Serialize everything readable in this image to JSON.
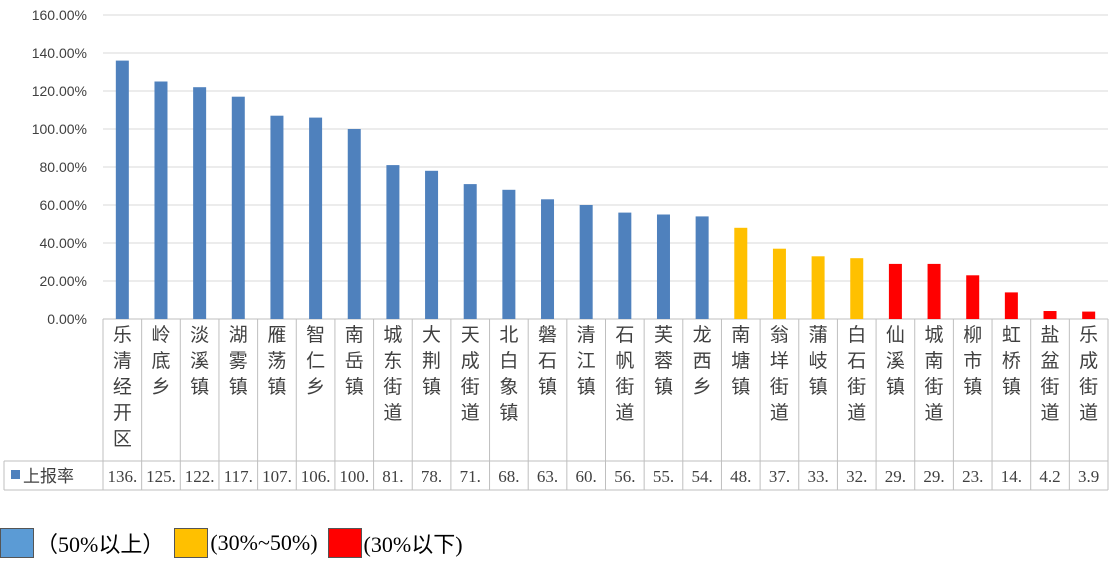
{
  "chart_data": {
    "type": "bar",
    "ylim": [
      0,
      160
    ],
    "yticks": [
      "0.00%",
      "20.00%",
      "40.00%",
      "60.00%",
      "80.00%",
      "100.00%",
      "120.00%",
      "140.00%",
      "160.00%"
    ],
    "grid": true,
    "categories": [
      "乐清经开区",
      "岭底乡",
      "淡溪镇",
      "湖雾镇",
      "雁荡镇",
      "智仁乡",
      "南岳镇",
      "城东街道",
      "大荆镇",
      "天成街道",
      "北白象镇",
      "磐石镇",
      "清江镇",
      "石帆街道",
      "芙蓉镇",
      "龙西乡",
      "南塘镇",
      "翁垟街道",
      "蒲岐镇",
      "白石街道",
      "仙溪镇",
      "城南街道",
      "柳市镇",
      "虹桥镇",
      "盐盆街道",
      "乐成街道"
    ],
    "series": [
      {
        "name": "上报率",
        "values": [
          136,
          125,
          122,
          117,
          107,
          106,
          100,
          81,
          78,
          71,
          68,
          63,
          60,
          56,
          55,
          54,
          48,
          37,
          33,
          32,
          29,
          29,
          23,
          14,
          4.2,
          3.9
        ]
      }
    ],
    "table_values": [
      "136.",
      "125.",
      "122.",
      "117.",
      "107.",
      "106.",
      "100.",
      "81.",
      "78.",
      "71.",
      "68.",
      "63.",
      "60.",
      "56.",
      "55.",
      "54.",
      "48.",
      "37.",
      "33.",
      "32.",
      "29.",
      "29.",
      "23.",
      "14.",
      "4.2",
      "3.9"
    ],
    "colors": {
      "high": "#4F81BD",
      "mid": "#FFC000",
      "low": "#FF0000"
    }
  },
  "legend": [
    {
      "label": "（50%以上）",
      "color": "#5B9BD5"
    },
    {
      "label": "(30%~50%)",
      "color": "#FFC000"
    },
    {
      "label": "(30%以下)",
      "color": "#FF0000"
    }
  ]
}
